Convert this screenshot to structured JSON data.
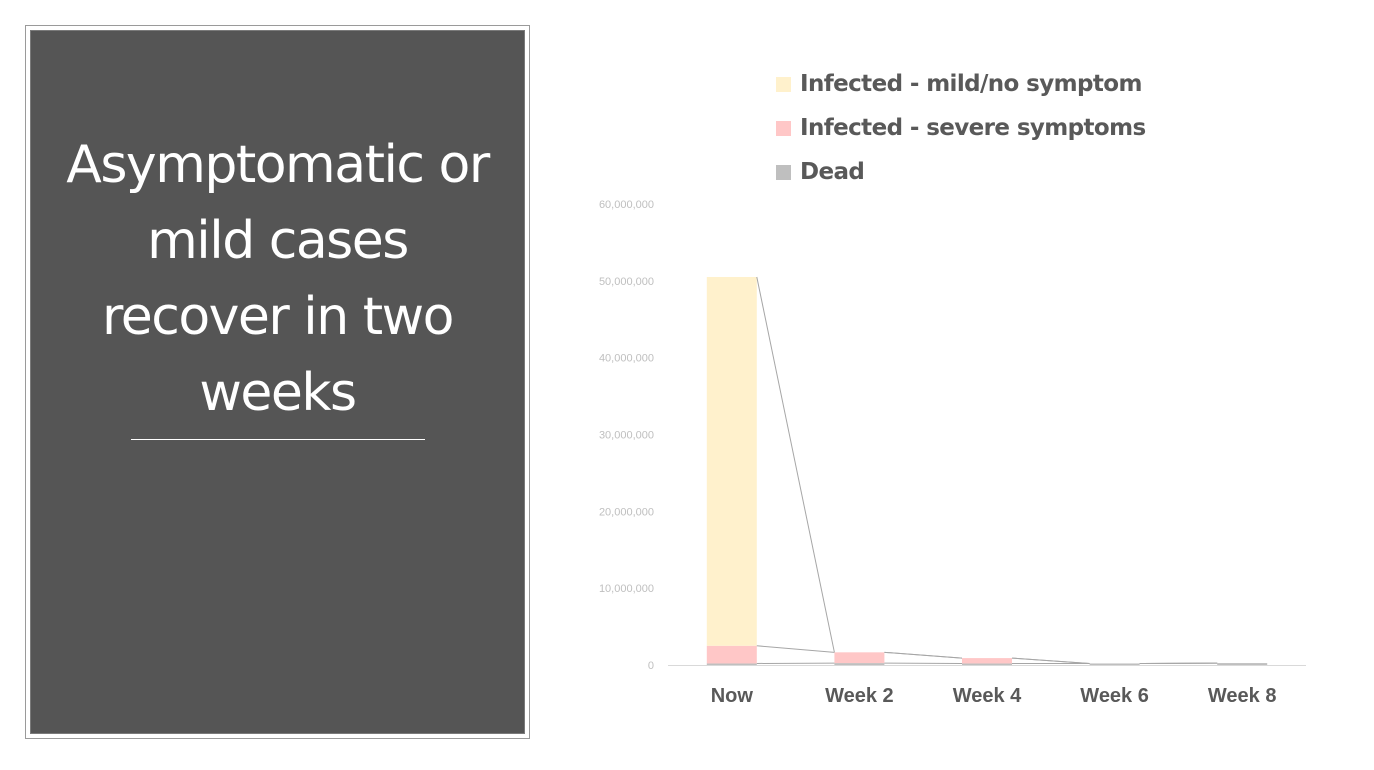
{
  "slide": {
    "title": "Asymptomatic or mild cases recover in two weeks"
  },
  "chart_data": {
    "type": "bar",
    "stacked": true,
    "categories": [
      "Now",
      "Week 2",
      "Week 4",
      "Week 6",
      "Week 8"
    ],
    "series": [
      {
        "name": "Dead",
        "color": "#bfbfbf",
        "values": [
          200000,
          250000,
          200000,
          200000,
          250000
        ]
      },
      {
        "name": "Infected - severe symptoms",
        "color": "#ffc7c7",
        "values": [
          2300000,
          1400000,
          700000,
          0,
          0
        ]
      },
      {
        "name": "Infected - mild/no symptom",
        "color": "#fff1cc",
        "values": [
          48000000,
          0,
          0,
          0,
          0
        ]
      }
    ],
    "series_lines": true,
    "legend_order": [
      "Infected - mild/no symptom",
      "Infected - severe symptoms",
      "Dead"
    ],
    "legend_position": "top",
    "y_ticks": [
      "0",
      "10,000,000",
      "20,000,000",
      "30,000,000",
      "40,000,000",
      "50,000,000",
      "60,000,000"
    ],
    "ylim": [
      0,
      60000000
    ],
    "grid": false
  }
}
